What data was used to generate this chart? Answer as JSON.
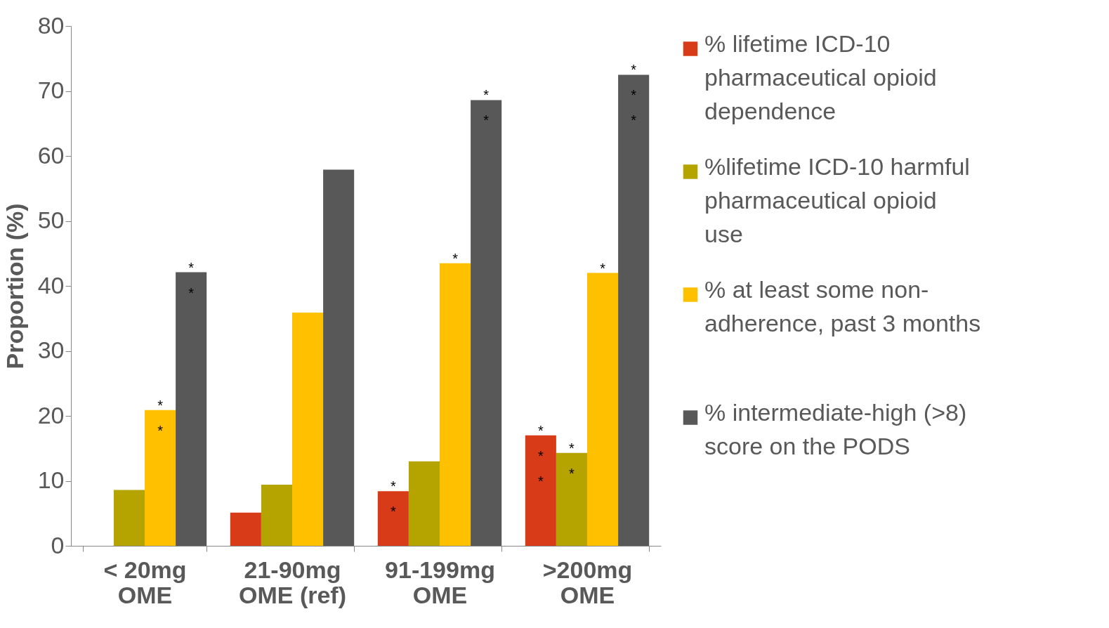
{
  "chart_data": {
    "type": "bar",
    "ylabel": "Proportion (%)",
    "categories": [
      "< 20mg\nOME",
      "21-90mg\nOME (ref)",
      "91-199mg\nOME",
      ">200mg\nOME"
    ],
    "series": [
      {
        "name": "% lifetime ICD-10 pharmaceutical opioid dependence",
        "color": "#d73b17",
        "values": [
          null,
          5.1,
          8.4,
          17.0
        ],
        "value_labels": [
          null,
          null,
          "**",
          "***"
        ]
      },
      {
        "name": "%lifetime ICD-10 harmful pharmaceutical opioid use",
        "color": "#b5a300",
        "values": [
          8.6,
          9.4,
          13.0,
          14.3
        ],
        "value_labels": [
          null,
          null,
          null,
          "**"
        ]
      },
      {
        "name": "% at least some non-adherence, past 3 months",
        "color": "#ffc000",
        "values": [
          20.9,
          35.9,
          43.5,
          42.0
        ],
        "value_labels": [
          "**",
          null,
          "*",
          "*"
        ]
      },
      {
        "name": "% intermediate-high (>8) score on the PODS",
        "color": "#585858",
        "values": [
          42.1,
          57.9,
          68.6,
          72.5
        ],
        "value_labels": [
          "**",
          null,
          "**",
          "***"
        ]
      }
    ],
    "ylim": [
      0,
      80
    ],
    "yticks": [
      0,
      10,
      20,
      30,
      40,
      50,
      60,
      70,
      80
    ],
    "grid": false,
    "legend": "right"
  }
}
